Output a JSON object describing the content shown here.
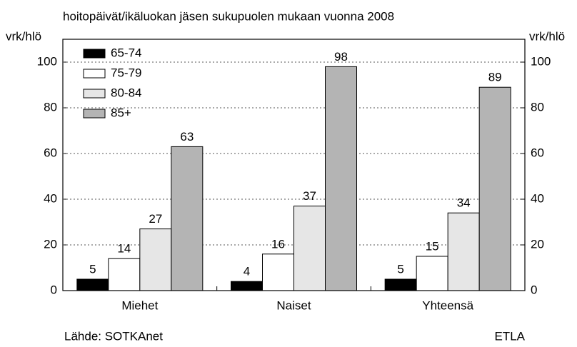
{
  "chart_data": {
    "type": "bar",
    "title": "hoitopäivät/ikäluokan jäsen sukupuolen mukaan vuonna 2008",
    "ylabel": "vrk/hlö",
    "y2label": "vrk/hlö",
    "categories": [
      "Miehet",
      "Naiset",
      "Yhteensä"
    ],
    "series": [
      {
        "name": "65-74",
        "color": "#000000",
        "values": [
          5,
          4,
          5
        ]
      },
      {
        "name": "75-79",
        "color": "#ffffff",
        "values": [
          14,
          16,
          15
        ]
      },
      {
        "name": "80-84",
        "color": "#e6e6e6",
        "values": [
          27,
          37,
          34
        ]
      },
      {
        "name": "85+",
        "color": "#b4b4b4",
        "values": [
          63,
          98,
          89
        ]
      }
    ],
    "ylim": [
      0,
      110
    ],
    "yticks": [
      0,
      20,
      40,
      60,
      80,
      100
    ],
    "y2lim": [
      0,
      110
    ],
    "y2ticks": [
      0,
      20,
      40,
      60,
      80,
      100
    ],
    "grid": true,
    "legend": "upper left",
    "source": "Lähde: SOTKAnet",
    "credit": "ETLA"
  }
}
